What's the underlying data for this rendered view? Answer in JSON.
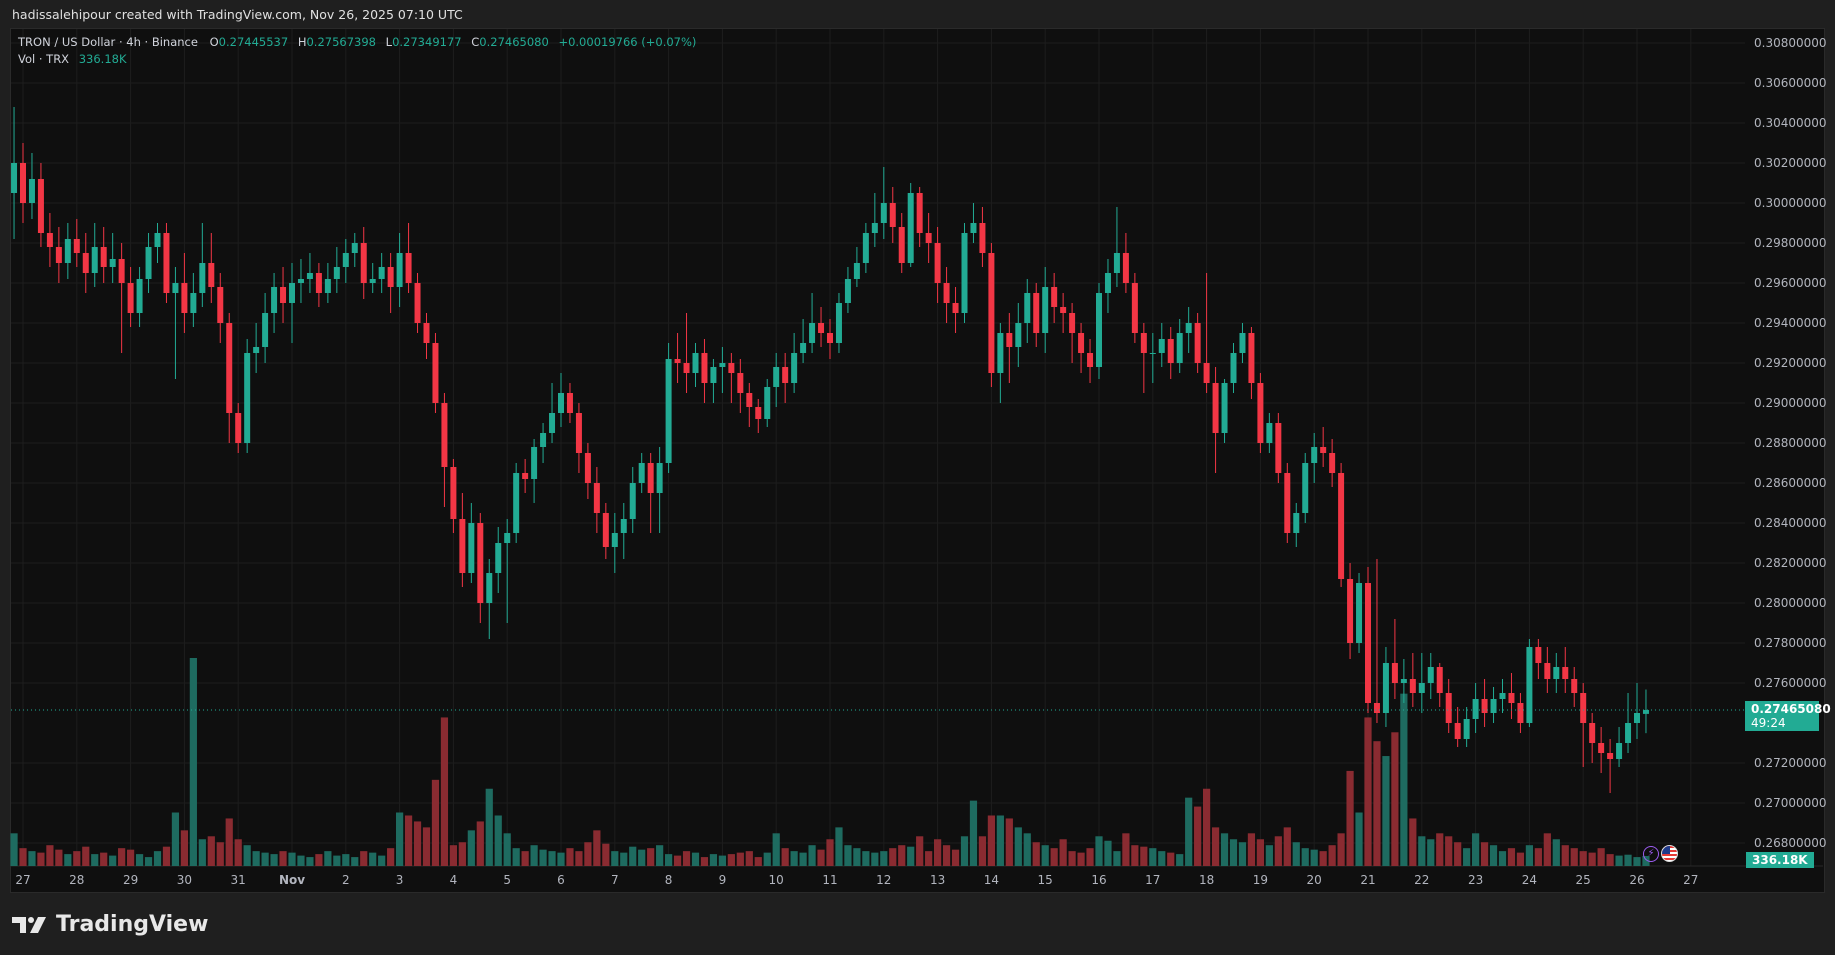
{
  "credit": "hadissalehipour created with TradingView.com, Nov 26, 2025 07:10 UTC",
  "legend": {
    "symbol": "TRON / US Dollar · 4h · Binance",
    "o_label": "O",
    "o": "0.27445537",
    "h_label": "H",
    "h": "0.27567398",
    "l_label": "L",
    "l": "0.27349177",
    "c_label": "C",
    "c": "0.27465080",
    "change": "+0.00019766 (+0.07%)",
    "vol_label": "Vol · TRX",
    "vol": "336.18K"
  },
  "price_tag": {
    "price": "0.27465080",
    "countdown": "49:24"
  },
  "volume_tag": "336.18K",
  "brand": "TradingView",
  "colors": {
    "up": "#22ab94",
    "down": "#f23645",
    "up_volume": "#1e6b60",
    "down_volume": "#8a2b31",
    "background": "#0f0f0f"
  },
  "icons": [
    "lightning-icon",
    "us-flag-icon"
  ],
  "chart_data": {
    "type": "candlestick",
    "interval": "4h",
    "ylim": [
      0.267,
      0.309
    ],
    "grid": true,
    "y_ticks": [
      "0.30800000",
      "0.30600000",
      "0.30400000",
      "0.30200000",
      "0.30000000",
      "0.29800000",
      "0.29600000",
      "0.29400000",
      "0.29200000",
      "0.29000000",
      "0.28800000",
      "0.28600000",
      "0.28400000",
      "0.28200000",
      "0.28000000",
      "0.27800000",
      "0.27600000",
      "0.27200000",
      "0.27000000",
      "0.26800000"
    ],
    "x_ticks": [
      "27",
      "28",
      "29",
      "30",
      "31",
      "Nov",
      "2",
      "3",
      "4",
      "5",
      "6",
      "7",
      "8",
      "9",
      "10",
      "11",
      "12",
      "13",
      "14",
      "15",
      "16",
      "17",
      "18",
      "19",
      "20",
      "21",
      "22",
      "23",
      "24",
      "25",
      "26",
      "27"
    ],
    "first_candle": "Oct 26 20:00",
    "open": [
      0.3005,
      0.302,
      0.3,
      0.3012,
      0.2985,
      0.2978,
      0.297,
      0.2982,
      0.2975,
      0.2965,
      0.2978,
      0.2968,
      0.2972,
      0.296,
      0.2945,
      0.2962,
      0.2978,
      0.2985,
      0.2955,
      0.296,
      0.2945,
      0.2955,
      0.297,
      0.2958,
      0.294,
      0.2895,
      0.288,
      0.2925,
      0.2928,
      0.2945,
      0.2958,
      0.295,
      0.296,
      0.2962,
      0.2965,
      0.2955,
      0.2962,
      0.2968,
      0.2975,
      0.298,
      0.296,
      0.2962,
      0.2968,
      0.2958,
      0.2975,
      0.296,
      0.294,
      0.293,
      0.29,
      0.2868,
      0.2842,
      0.2815,
      0.284,
      0.28,
      0.2815,
      0.283,
      0.2835,
      0.2865,
      0.2862,
      0.2878,
      0.2885,
      0.2895,
      0.2905,
      0.2895,
      0.2875,
      0.286,
      0.2845,
      0.2828,
      0.2835,
      0.2842,
      0.286,
      0.287,
      0.2855,
      0.287,
      0.2922,
      0.292,
      0.2915,
      0.2925,
      0.291,
      0.2918,
      0.292,
      0.2915,
      0.2905,
      0.2898,
      0.2892,
      0.2908,
      0.2918,
      0.291,
      0.2925,
      0.293,
      0.294,
      0.2935,
      0.293,
      0.295,
      0.2962,
      0.297,
      0.2985,
      0.299,
      0.3,
      0.2988,
      0.297,
      0.3005,
      0.2985,
      0.298,
      0.296,
      0.295,
      0.2945,
      0.2985,
      0.299,
      0.2975,
      0.2915,
      0.2935,
      0.2928,
      0.294,
      0.2955,
      0.2935,
      0.2958,
      0.2948,
      0.2945,
      0.2935,
      0.2925,
      0.2918,
      0.2955,
      0.2965,
      0.2975,
      0.296,
      0.2935,
      0.2925,
      0.2925,
      0.2932,
      0.292,
      0.2935,
      0.294,
      0.292,
      0.291,
      0.2885,
      0.291,
      0.2925,
      0.2935,
      0.291,
      0.288,
      0.289,
      0.2865,
      0.2835,
      0.2845,
      0.287,
      0.2878,
      0.2875,
      0.2865,
      0.2812,
      0.278,
      0.281,
      0.275,
      0.2745,
      0.277,
      0.276,
      0.2762,
      0.2755,
      0.276,
      0.2768,
      0.2755,
      0.274,
      0.2732,
      0.2742,
      0.2752,
      0.2745,
      0.2752,
      0.2755,
      0.275,
      0.274,
      0.2778,
      0.277,
      0.2762,
      0.2768,
      0.2762,
      0.2755,
      0.274,
      0.273,
      0.2725,
      0.2722,
      0.273,
      0.274,
      0.27445537
    ],
    "high": [
      0.3048,
      0.303,
      0.3025,
      0.302,
      0.2995,
      0.2988,
      0.299,
      0.2992,
      0.2985,
      0.299,
      0.2988,
      0.2985,
      0.298,
      0.2968,
      0.2968,
      0.2985,
      0.299,
      0.299,
      0.2968,
      0.2975,
      0.2965,
      0.299,
      0.2985,
      0.2965,
      0.2945,
      0.29,
      0.2932,
      0.294,
      0.2955,
      0.2965,
      0.2968,
      0.297,
      0.2972,
      0.2975,
      0.297,
      0.297,
      0.2978,
      0.2982,
      0.2985,
      0.2988,
      0.297,
      0.2975,
      0.2975,
      0.2985,
      0.299,
      0.2965,
      0.2945,
      0.2935,
      0.2905,
      0.2872,
      0.2855,
      0.285,
      0.2845,
      0.2822,
      0.2838,
      0.2842,
      0.287,
      0.2872,
      0.2882,
      0.289,
      0.291,
      0.2915,
      0.291,
      0.29,
      0.288,
      0.2868,
      0.285,
      0.2845,
      0.285,
      0.2868,
      0.2875,
      0.2875,
      0.2878,
      0.293,
      0.2935,
      0.2945,
      0.293,
      0.2932,
      0.2922,
      0.2928,
      0.2925,
      0.2922,
      0.291,
      0.2902,
      0.2912,
      0.2925,
      0.2925,
      0.2935,
      0.2942,
      0.2955,
      0.2948,
      0.2942,
      0.2955,
      0.2968,
      0.2978,
      0.299,
      0.3005,
      0.3018,
      0.3008,
      0.2995,
      0.301,
      0.3008,
      0.2995,
      0.2988,
      0.2968,
      0.2958,
      0.299,
      0.3,
      0.2998,
      0.298,
      0.294,
      0.2945,
      0.295,
      0.2962,
      0.296,
      0.2968,
      0.2965,
      0.2955,
      0.295,
      0.294,
      0.2932,
      0.296,
      0.2972,
      0.2998,
      0.2985,
      0.2965,
      0.294,
      0.2935,
      0.294,
      0.2938,
      0.2942,
      0.2948,
      0.2945,
      0.2965,
      0.2918,
      0.2912,
      0.293,
      0.294,
      0.2938,
      0.2915,
      0.2895,
      0.2895,
      0.287,
      0.285,
      0.2875,
      0.2885,
      0.2888,
      0.2882,
      0.287,
      0.282,
      0.2815,
      0.2818,
      0.2822,
      0.2778,
      0.2792,
      0.2772,
      0.2775,
      0.2775,
      0.2775,
      0.277,
      0.2762,
      0.2748,
      0.2748,
      0.276,
      0.2762,
      0.2758,
      0.2762,
      0.2765,
      0.2755,
      0.2782,
      0.2782,
      0.2778,
      0.2775,
      0.2778,
      0.2768,
      0.276,
      0.2745,
      0.2738,
      0.2732,
      0.2738,
      0.2755,
      0.276,
      0.27567398
    ],
    "low": [
      0.2982,
      0.299,
      0.2992,
      0.2978,
      0.2968,
      0.296,
      0.2962,
      0.2968,
      0.2955,
      0.2958,
      0.296,
      0.296,
      0.2925,
      0.2938,
      0.2938,
      0.2955,
      0.297,
      0.295,
      0.2912,
      0.2935,
      0.2938,
      0.2948,
      0.295,
      0.293,
      0.288,
      0.2875,
      0.2875,
      0.2915,
      0.292,
      0.2935,
      0.294,
      0.293,
      0.295,
      0.2955,
      0.2948,
      0.295,
      0.2955,
      0.296,
      0.2968,
      0.2952,
      0.2955,
      0.2955,
      0.2945,
      0.2948,
      0.2955,
      0.2935,
      0.2922,
      0.2895,
      0.2848,
      0.2835,
      0.2808,
      0.281,
      0.279,
      0.2782,
      0.2805,
      0.279,
      0.283,
      0.2855,
      0.285,
      0.287,
      0.288,
      0.2888,
      0.289,
      0.2865,
      0.2852,
      0.2835,
      0.2822,
      0.2815,
      0.2822,
      0.2835,
      0.2855,
      0.2835,
      0.2835,
      0.2865,
      0.291,
      0.2905,
      0.2908,
      0.29,
      0.29,
      0.2905,
      0.29,
      0.2895,
      0.2888,
      0.2885,
      0.2888,
      0.2898,
      0.29,
      0.2905,
      0.292,
      0.2925,
      0.2928,
      0.2922,
      0.2925,
      0.2945,
      0.2958,
      0.2965,
      0.2978,
      0.2982,
      0.298,
      0.2965,
      0.2968,
      0.2978,
      0.297,
      0.295,
      0.294,
      0.2935,
      0.294,
      0.298,
      0.2968,
      0.2908,
      0.29,
      0.291,
      0.2918,
      0.293,
      0.2928,
      0.2925,
      0.294,
      0.2935,
      0.292,
      0.2915,
      0.291,
      0.2912,
      0.2945,
      0.2958,
      0.2955,
      0.293,
      0.2905,
      0.291,
      0.2918,
      0.2912,
      0.2915,
      0.2925,
      0.2915,
      0.2905,
      0.2865,
      0.288,
      0.2905,
      0.292,
      0.2902,
      0.2875,
      0.2875,
      0.286,
      0.283,
      0.2828,
      0.284,
      0.286,
      0.2868,
      0.2858,
      0.2808,
      0.2772,
      0.2775,
      0.2745,
      0.274,
      0.2738,
      0.2752,
      0.275,
      0.2748,
      0.2745,
      0.2752,
      0.2748,
      0.2735,
      0.2728,
      0.2728,
      0.2735,
      0.2738,
      0.274,
      0.2745,
      0.2742,
      0.2735,
      0.2738,
      0.2762,
      0.2755,
      0.2755,
      0.2755,
      0.2748,
      0.2718,
      0.272,
      0.2715,
      0.2705,
      0.2718,
      0.2725,
      0.2732,
      0.27349177
    ],
    "close": [
      0.302,
      0.3,
      0.3012,
      0.2985,
      0.2978,
      0.297,
      0.2982,
      0.2975,
      0.2965,
      0.2978,
      0.2968,
      0.2972,
      0.296,
      0.2945,
      0.2962,
      0.2978,
      0.2985,
      0.2955,
      0.296,
      0.2945,
      0.2955,
      0.297,
      0.2958,
      0.294,
      0.2895,
      0.288,
      0.2925,
      0.2928,
      0.2945,
      0.2958,
      0.295,
      0.296,
      0.2962,
      0.2965,
      0.2955,
      0.2962,
      0.2968,
      0.2975,
      0.298,
      0.296,
      0.2962,
      0.2968,
      0.2958,
      0.2975,
      0.296,
      0.294,
      0.293,
      0.29,
      0.2868,
      0.2842,
      0.2815,
      0.284,
      0.28,
      0.2815,
      0.283,
      0.2835,
      0.2865,
      0.2862,
      0.2878,
      0.2885,
      0.2895,
      0.2905,
      0.2895,
      0.2875,
      0.286,
      0.2845,
      0.2828,
      0.2835,
      0.2842,
      0.286,
      0.287,
      0.2855,
      0.287,
      0.2922,
      0.292,
      0.2915,
      0.2925,
      0.291,
      0.2918,
      0.292,
      0.2915,
      0.2905,
      0.2898,
      0.2892,
      0.2908,
      0.2918,
      0.291,
      0.2925,
      0.293,
      0.294,
      0.2935,
      0.293,
      0.295,
      0.2962,
      0.297,
      0.2985,
      0.299,
      0.3,
      0.2988,
      0.297,
      0.3005,
      0.2985,
      0.298,
      0.296,
      0.295,
      0.2945,
      0.2985,
      0.299,
      0.2975,
      0.2915,
      0.2935,
      0.2928,
      0.294,
      0.2955,
      0.2935,
      0.2958,
      0.2948,
      0.2945,
      0.2935,
      0.2925,
      0.2918,
      0.2955,
      0.2965,
      0.2975,
      0.296,
      0.2935,
      0.2925,
      0.2925,
      0.2932,
      0.292,
      0.2935,
      0.294,
      0.292,
      0.291,
      0.2885,
      0.291,
      0.2925,
      0.2935,
      0.291,
      0.288,
      0.289,
      0.2865,
      0.2835,
      0.2845,
      0.287,
      0.2878,
      0.2875,
      0.2865,
      0.2812,
      0.278,
      0.281,
      0.275,
      0.2745,
      0.277,
      0.276,
      0.2762,
      0.2755,
      0.276,
      0.2768,
      0.2755,
      0.274,
      0.2732,
      0.2742,
      0.2752,
      0.2745,
      0.2752,
      0.2755,
      0.275,
      0.274,
      0.2778,
      0.277,
      0.2762,
      0.2768,
      0.2762,
      0.2755,
      0.274,
      0.273,
      0.2725,
      0.2722,
      0.273,
      0.274,
      0.2745,
      0.2746508
    ],
    "volume_k": [
      1100,
      600,
      500,
      450,
      700,
      550,
      400,
      500,
      650,
      400,
      450,
      350,
      600,
      550,
      400,
      300,
      500,
      650,
      1800,
      1200,
      7000,
      900,
      1000,
      800,
      1600,
      900,
      700,
      500,
      450,
      400,
      500,
      450,
      350,
      300,
      400,
      500,
      350,
      400,
      300,
      500,
      450,
      350,
      600,
      1800,
      1700,
      1500,
      1300,
      2900,
      5000,
      700,
      800,
      1200,
      1500,
      2600,
      1700,
      1100,
      600,
      500,
      700,
      550,
      500,
      450,
      600,
      500,
      800,
      1200,
      750,
      500,
      450,
      650,
      550,
      600,
      700,
      400,
      350,
      500,
      450,
      300,
      400,
      350,
      400,
      450,
      500,
      300,
      450,
      1100,
      600,
      500,
      450,
      700,
      550,
      900,
      1300,
      700,
      600,
      500,
      450,
      500,
      600,
      700,
      650,
      1000,
      500,
      900,
      700,
      550,
      1000,
      2200,
      1000,
      1700,
      1700,
      1600,
      1300,
      1100,
      800,
      700,
      600,
      900,
      500,
      450,
      600,
      1000,
      850,
      500,
      1100,
      700,
      650,
      600,
      500,
      450,
      400,
      2300,
      2000,
      2600,
      1300,
      1100,
      900,
      800,
      1100,
      900,
      700,
      1000,
      1300,
      800,
      600,
      550,
      500,
      700,
      1100,
      3200,
      1800,
      5000,
      4200,
      3700,
      4500,
      5800,
      1600,
      1000,
      900,
      1100,
      1000,
      800,
      600,
      1100,
      800,
      700,
      500,
      600,
      450,
      700,
      600,
      1100,
      900,
      700,
      600,
      500,
      450,
      600,
      400,
      350,
      380,
      300,
      336.18
    ],
    "last_price": 0.2746508
  }
}
